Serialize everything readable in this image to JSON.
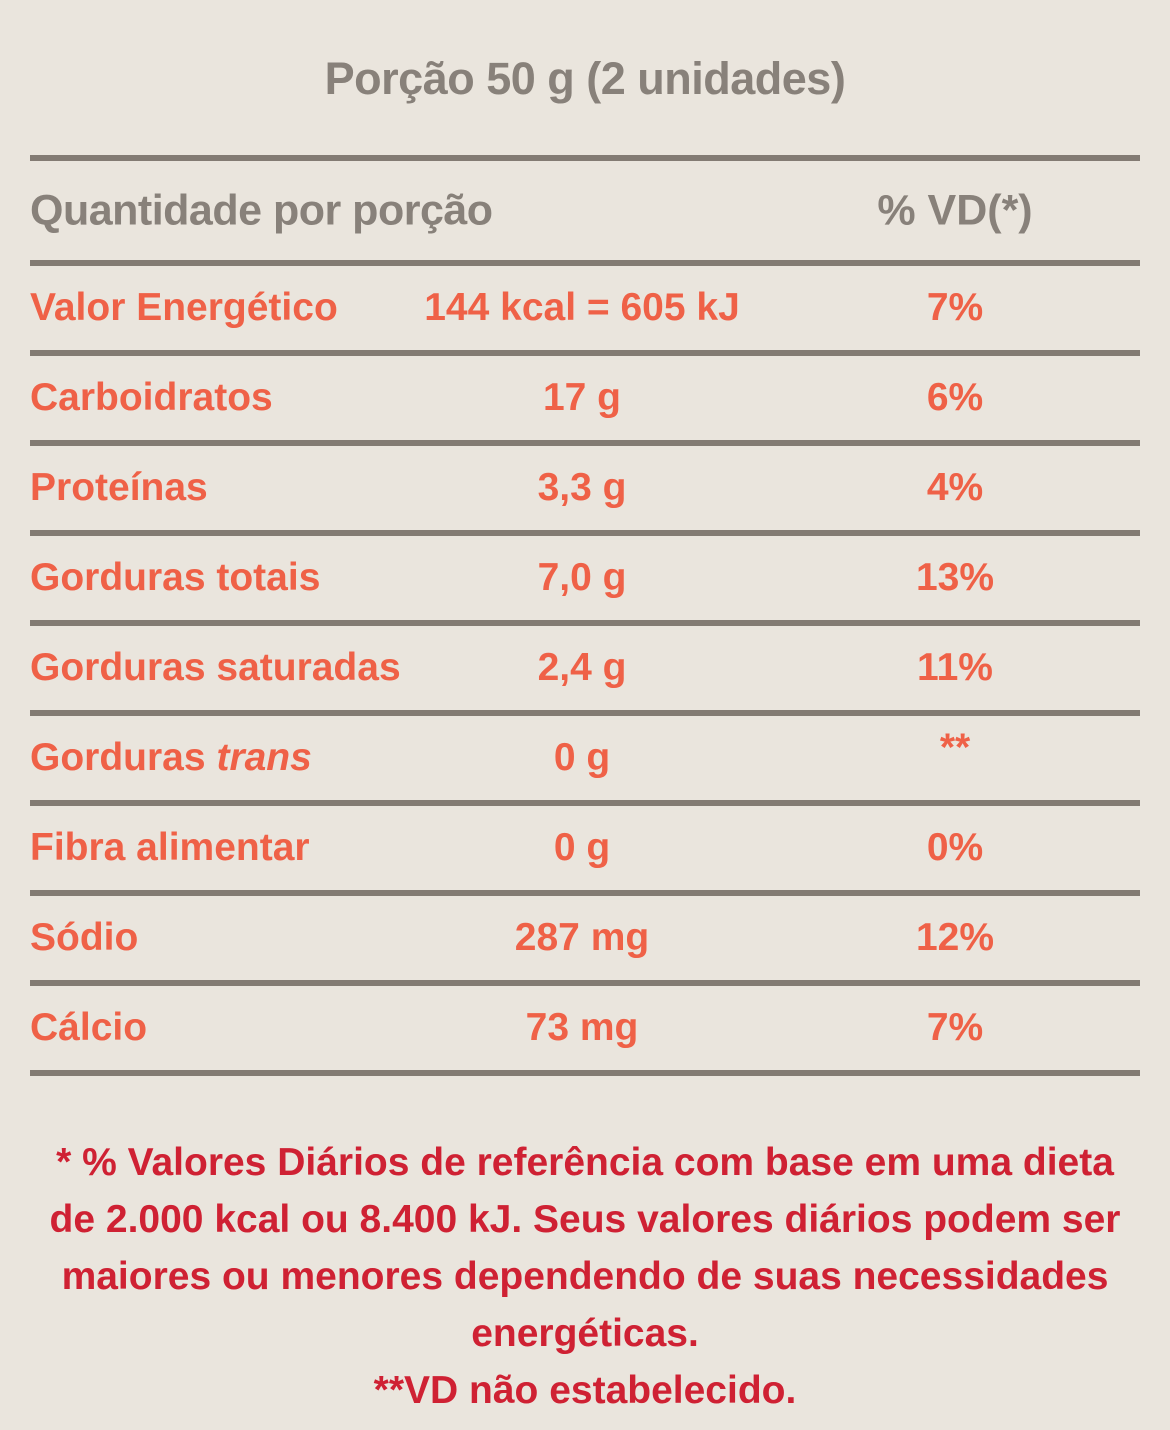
{
  "title": "Porção 50 g (2 unidades)",
  "table": {
    "header": {
      "quantity_label": "Quantidade por porção",
      "vd_label": "% VD(*)"
    },
    "rows": [
      {
        "label": "Valor Energético",
        "label_italic": "",
        "value": "144 kcal = 605 kJ",
        "vd": "7%"
      },
      {
        "label": "Carboidratos",
        "label_italic": "",
        "value": "17 g",
        "vd": "6%"
      },
      {
        "label": "Proteínas",
        "label_italic": "",
        "value": "3,3 g",
        "vd": "4%"
      },
      {
        "label": "Gorduras totais",
        "label_italic": "",
        "value": "7,0 g",
        "vd": "13%"
      },
      {
        "label": "Gorduras saturadas",
        "label_italic": "",
        "value": "2,4 g",
        "vd": "11%"
      },
      {
        "label": "Gorduras",
        "label_italic": "trans",
        "value": "0 g",
        "vd": "**"
      },
      {
        "label": "Fibra alimentar",
        "label_italic": "",
        "value": "0 g",
        "vd": "0%"
      },
      {
        "label": "Sódio",
        "label_italic": "",
        "value": "287 mg",
        "vd": "12%"
      },
      {
        "label": "Cálcio",
        "label_italic": "",
        "value": "73 mg",
        "vd": "7%"
      }
    ]
  },
  "footnote_lines": [
    "* % Valores Diários de referência com base em uma dieta",
    "de 2.000 kcal ou 8.400 kJ. Seus valores diários podem ser",
    "maiores ou menores dependendo de suas necessidades",
    "energéticas.",
    "**VD não estabelecido."
  ],
  "colors": {
    "background": "#eae5dd",
    "heading_text": "#88817a",
    "divider": "#837b73",
    "row_text": "#ef6147",
    "footnote_text": "#cf2133"
  }
}
